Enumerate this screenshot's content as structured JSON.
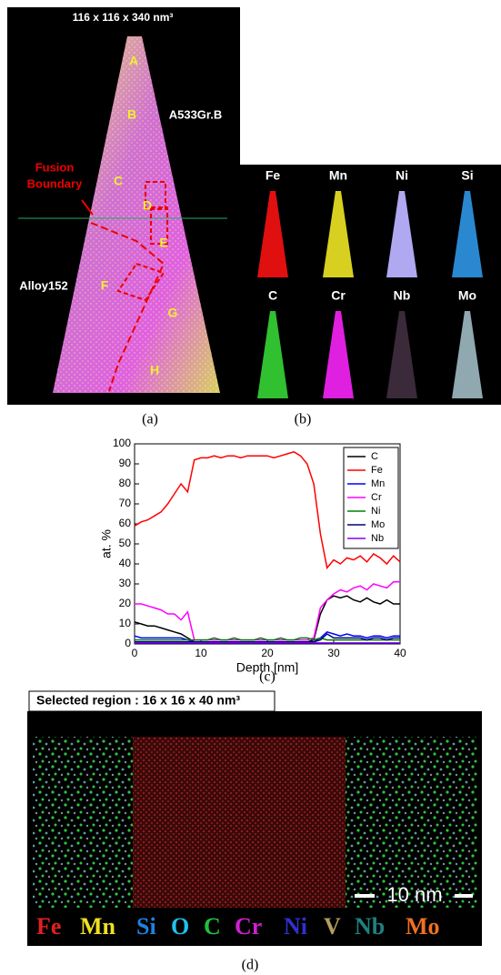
{
  "panel_a": {
    "title": "116 x 116 x 340 nm³",
    "regions": [
      "A",
      "B",
      "C",
      "D",
      "E",
      "F",
      "G",
      "H"
    ],
    "steel_label": "A533Gr.B",
    "boundary_label": [
      "Fusion",
      "Boundary"
    ],
    "alloy_label": "Alloy152",
    "caption": "(a)"
  },
  "panel_b": {
    "elements": [
      "Fe",
      "Mn",
      "Ni",
      "Si",
      "C",
      "Cr",
      "Nb",
      "Mo"
    ],
    "caption": "(b)"
  },
  "chart_data": {
    "type": "line",
    "x_label": "Depth [nm]",
    "y_label": "at. %",
    "caption": "(c)",
    "x": [
      0,
      1,
      2,
      3,
      4,
      5,
      6,
      7,
      8,
      9,
      10,
      11,
      12,
      13,
      14,
      15,
      16,
      17,
      18,
      19,
      20,
      21,
      22,
      23,
      24,
      25,
      26,
      27,
      28,
      29,
      30,
      31,
      32,
      33,
      34,
      35,
      36,
      37,
      38,
      39,
      40
    ],
    "series": [
      {
        "name": "C",
        "color": "#000000",
        "values": [
          11,
          10,
          9,
          9,
          8,
          7,
          6,
          5,
          3,
          1,
          1,
          1,
          1,
          1,
          1,
          1,
          1,
          1,
          1,
          1,
          1,
          1,
          1,
          1,
          1,
          1,
          1,
          2,
          15,
          22,
          24,
          23,
          24,
          22,
          21,
          23,
          21,
          20,
          22,
          20,
          20
        ]
      },
      {
        "name": "Fe",
        "color": "#ff0000",
        "values": [
          59,
          61,
          62,
          64,
          66,
          70,
          75,
          80,
          76,
          92,
          93,
          93,
          94,
          93,
          94,
          94,
          93,
          94,
          94,
          94,
          94,
          93,
          94,
          95,
          96,
          94,
          90,
          80,
          55,
          38,
          42,
          40,
          43,
          42,
          44,
          41,
          45,
          43,
          40,
          44,
          41
        ]
      },
      {
        "name": "Mn",
        "color": "#0000ff",
        "values": [
          4,
          3,
          3,
          3,
          3,
          3,
          3,
          3,
          2,
          1,
          1,
          1,
          1,
          1,
          1,
          1,
          1,
          1,
          1,
          1,
          1,
          1,
          1,
          1,
          1,
          1,
          1,
          1,
          3,
          6,
          5,
          4,
          5,
          4,
          4,
          3,
          4,
          4,
          3,
          4,
          4
        ]
      },
      {
        "name": "Cr",
        "color": "#ff00ff",
        "values": [
          20,
          20,
          19,
          18,
          17,
          15,
          15,
          12,
          16,
          2,
          2,
          2,
          2,
          2,
          2,
          2,
          2,
          2,
          2,
          2,
          2,
          2,
          2,
          2,
          2,
          2,
          2,
          3,
          18,
          22,
          25,
          27,
          26,
          28,
          29,
          27,
          30,
          29,
          28,
          31,
          31
        ]
      },
      {
        "name": "Ni",
        "color": "#008000",
        "values": [
          2,
          2,
          2,
          2,
          2,
          2,
          2,
          2,
          2,
          2,
          2,
          2,
          3,
          2,
          2,
          3,
          2,
          2,
          2,
          3,
          2,
          2,
          3,
          2,
          2,
          3,
          3,
          2,
          3,
          2,
          2,
          2,
          2,
          2,
          2,
          2,
          2,
          2,
          2,
          2,
          2
        ]
      },
      {
        "name": "Mo",
        "color": "#000080",
        "values": [
          1,
          1,
          1,
          1,
          1,
          1,
          1,
          1,
          1,
          1,
          1,
          1,
          1,
          1,
          1,
          1,
          1,
          1,
          1,
          1,
          1,
          1,
          1,
          1,
          1,
          1,
          1,
          1,
          2,
          5,
          3,
          3,
          3,
          3,
          3,
          2,
          3,
          3,
          2,
          3,
          3
        ]
      },
      {
        "name": "Nb",
        "color": "#8000ff",
        "values": [
          0.5,
          0.5,
          0.5,
          0.5,
          0.5,
          0.5,
          0.5,
          0.5,
          0.5,
          0.5,
          0.5,
          0.5,
          0.5,
          0.5,
          0.5,
          0.5,
          0.5,
          0.5,
          0.5,
          0.5,
          0.5,
          0.5,
          0.5,
          0.5,
          0.5,
          0.5,
          0.5,
          0.5,
          0.5,
          0.5,
          0.5,
          0.5,
          0.5,
          0.5,
          0.5,
          0.5,
          0.5,
          0.5,
          0.5,
          0.5,
          0.5
        ]
      }
    ],
    "xlim": [
      0,
      40
    ],
    "ylim": [
      0,
      100
    ],
    "xticks": [
      0,
      10,
      20,
      30,
      40
    ],
    "yticks": [
      0,
      10,
      20,
      30,
      40,
      50,
      60,
      70,
      80,
      90,
      100
    ]
  },
  "panel_d": {
    "title": "Selected region : 16 x 16 x 40 nm³",
    "scale_bar": "10 nm",
    "elements": [
      {
        "text": "Fe",
        "color": "#e02020"
      },
      {
        "text": "Mn",
        "color": "#f0e020"
      },
      {
        "text": "Si",
        "color": "#2080e0"
      },
      {
        "text": "O",
        "color": "#20c0f0"
      },
      {
        "text": "C",
        "color": "#20c040"
      },
      {
        "text": "Cr",
        "color": "#d020d0"
      },
      {
        "text": "Ni",
        "color": "#3030d0"
      },
      {
        "text": "V",
        "color": "#b0a060"
      },
      {
        "text": "Nb",
        "color": "#208080"
      },
      {
        "text": "Mo",
        "color": "#f07020"
      }
    ],
    "caption": "(d)"
  }
}
